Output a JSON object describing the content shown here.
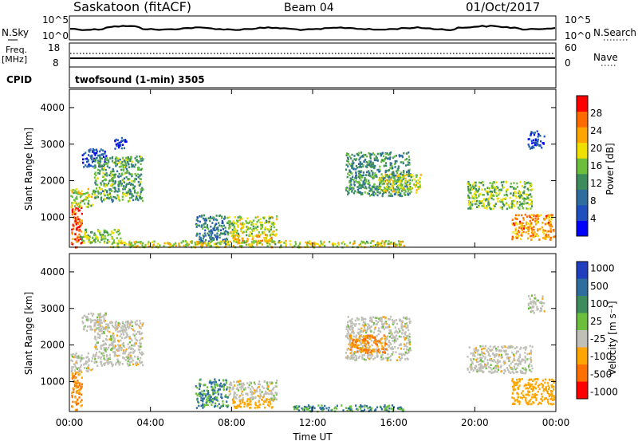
{
  "header": {
    "station": "Saskatoon (fitACF)",
    "beam": "Beam 04",
    "date": "01/Oct/2017"
  },
  "noise_panel": {
    "left_label": "N.Sky",
    "left_ticks": [
      "10^5",
      "10^0"
    ],
    "right_ticks": [
      "10^5",
      "10^0"
    ],
    "right_label": "N.Search"
  },
  "freq_panel": {
    "left_label_top": "Freq.",
    "left_label_bottom": "[MHz]",
    "left_ticks": [
      "18",
      "8"
    ],
    "right_ticks": [
      "60",
      "0"
    ],
    "right_label": "Nave"
  },
  "cpid_panel": {
    "label": "CPID",
    "text": "twofsound (1-min) 3505"
  },
  "colors": {
    "power": [
      "#0000ff",
      "#1f4fbf",
      "#2e6e9e",
      "#3c8c5c",
      "#6cbf3c",
      "#f0e000",
      "#ffa500",
      "#ff6a00",
      "#ff0000"
    ],
    "velocity": [
      "#1f3fbf",
      "#2e6e9e",
      "#3c8c5c",
      "#6cbf3c",
      "#c0c0b8",
      "#ffa500",
      "#ff7000",
      "#ff0000"
    ],
    "ground": "#9e9e9e"
  },
  "chart_data": [
    {
      "type": "heatmap",
      "title": "Power",
      "ylabel": "Slant Range [km]",
      "xlabel": "",
      "colorbar_label": "Power [dB]",
      "colorbar_ticks": [
        "4",
        "8",
        "12",
        "16",
        "20",
        "24",
        "28"
      ],
      "yticks": [
        "1000",
        "2000",
        "3000",
        "4000"
      ],
      "xlim": [
        0,
        24
      ],
      "ylim": [
        180,
        4500
      ],
      "scale": [
        0,
        32
      ],
      "regions": [
        {
          "t0": 0.05,
          "t1": 0.6,
          "r0": 200,
          "r1": 1350,
          "v": 28
        },
        {
          "t0": 0.05,
          "t1": 1.2,
          "r0": 1300,
          "r1": 1800,
          "v": 18
        },
        {
          "t0": 0.6,
          "t1": 1.8,
          "r0": 2400,
          "r1": 2900,
          "v": 6
        },
        {
          "t0": 1.2,
          "t1": 3.6,
          "r0": 1450,
          "r1": 2700,
          "v": 14
        },
        {
          "t0": 2.2,
          "t1": 2.8,
          "r0": 2900,
          "r1": 3200,
          "v": 5
        },
        {
          "t0": 0.5,
          "t1": 2.5,
          "r0": 300,
          "r1": 700,
          "v": 16
        },
        {
          "t0": 6.2,
          "t1": 7.8,
          "r0": 300,
          "r1": 1100,
          "v": 10
        },
        {
          "t0": 7.8,
          "t1": 10.2,
          "r0": 500,
          "r1": 1050,
          "v": 17
        },
        {
          "t0": 8.0,
          "t1": 10.0,
          "r0": 300,
          "r1": 550,
          "v": 22
        },
        {
          "t0": 2.0,
          "t1": 16.5,
          "r0": 200,
          "r1": 380,
          "v": 19
        },
        {
          "t0": 13.6,
          "t1": 16.8,
          "r0": 1600,
          "r1": 2800,
          "v": 12
        },
        {
          "t0": 15.2,
          "t1": 17.3,
          "r0": 1700,
          "r1": 2200,
          "v": 18
        },
        {
          "t0": 19.6,
          "t1": 22.8,
          "r0": 1250,
          "r1": 2000,
          "v": 16
        },
        {
          "t0": 21.8,
          "t1": 23.9,
          "r0": 400,
          "r1": 1100,
          "v": 24
        },
        {
          "t0": 22.6,
          "t1": 23.4,
          "r0": 2900,
          "r1": 3400,
          "v": 5
        }
      ]
    },
    {
      "type": "heatmap",
      "title": "Velocity",
      "ylabel": "Slant Range [km]",
      "xlabel": "Time UT",
      "colorbar_label": "Velocity [m s⁻¹]",
      "colorbar_ticks": [
        "-1000",
        "-500",
        "-100",
        "-25",
        "25",
        "100",
        "500",
        "1000"
      ],
      "xticks": [
        "00:00",
        "04:00",
        "08:00",
        "12:00",
        "16:00",
        "20:00",
        "00:00"
      ],
      "yticks": [
        "1000",
        "2000",
        "3000",
        "4000"
      ],
      "xlim": [
        0,
        24
      ],
      "ylim": [
        180,
        4500
      ],
      "regions": [
        {
          "t0": 0.05,
          "t1": 0.6,
          "r0": 250,
          "r1": 1350,
          "v": -500
        },
        {
          "t0": 0.05,
          "t1": 1.2,
          "r0": 1300,
          "r1": 1800,
          "v": 0
        },
        {
          "t0": 1.2,
          "t1": 3.6,
          "r0": 1450,
          "r1": 2700,
          "v": 0
        },
        {
          "t0": 0.6,
          "t1": 1.8,
          "r0": 2400,
          "r1": 2900,
          "v": 0
        },
        {
          "t0": 6.2,
          "t1": 7.8,
          "r0": 300,
          "r1": 1100,
          "v": 100
        },
        {
          "t0": 7.8,
          "t1": 10.2,
          "r0": 500,
          "r1": 1050,
          "v": 0
        },
        {
          "t0": 8.0,
          "t1": 10.0,
          "r0": 300,
          "r1": 550,
          "v": -100
        },
        {
          "t0": 11.0,
          "t1": 16.5,
          "r0": 200,
          "r1": 380,
          "v": 100
        },
        {
          "t0": 13.6,
          "t1": 16.8,
          "r0": 1600,
          "r1": 2800,
          "v": 0
        },
        {
          "t0": 13.8,
          "t1": 15.6,
          "r0": 1800,
          "r1": 2300,
          "v": -500
        },
        {
          "t0": 19.6,
          "t1": 22.8,
          "r0": 1250,
          "r1": 2000,
          "v": 0
        },
        {
          "t0": 21.8,
          "t1": 23.9,
          "r0": 400,
          "r1": 1100,
          "v": -100
        },
        {
          "t0": 22.6,
          "t1": 23.4,
          "r0": 2900,
          "r1": 3400,
          "v": 0
        }
      ]
    }
  ]
}
